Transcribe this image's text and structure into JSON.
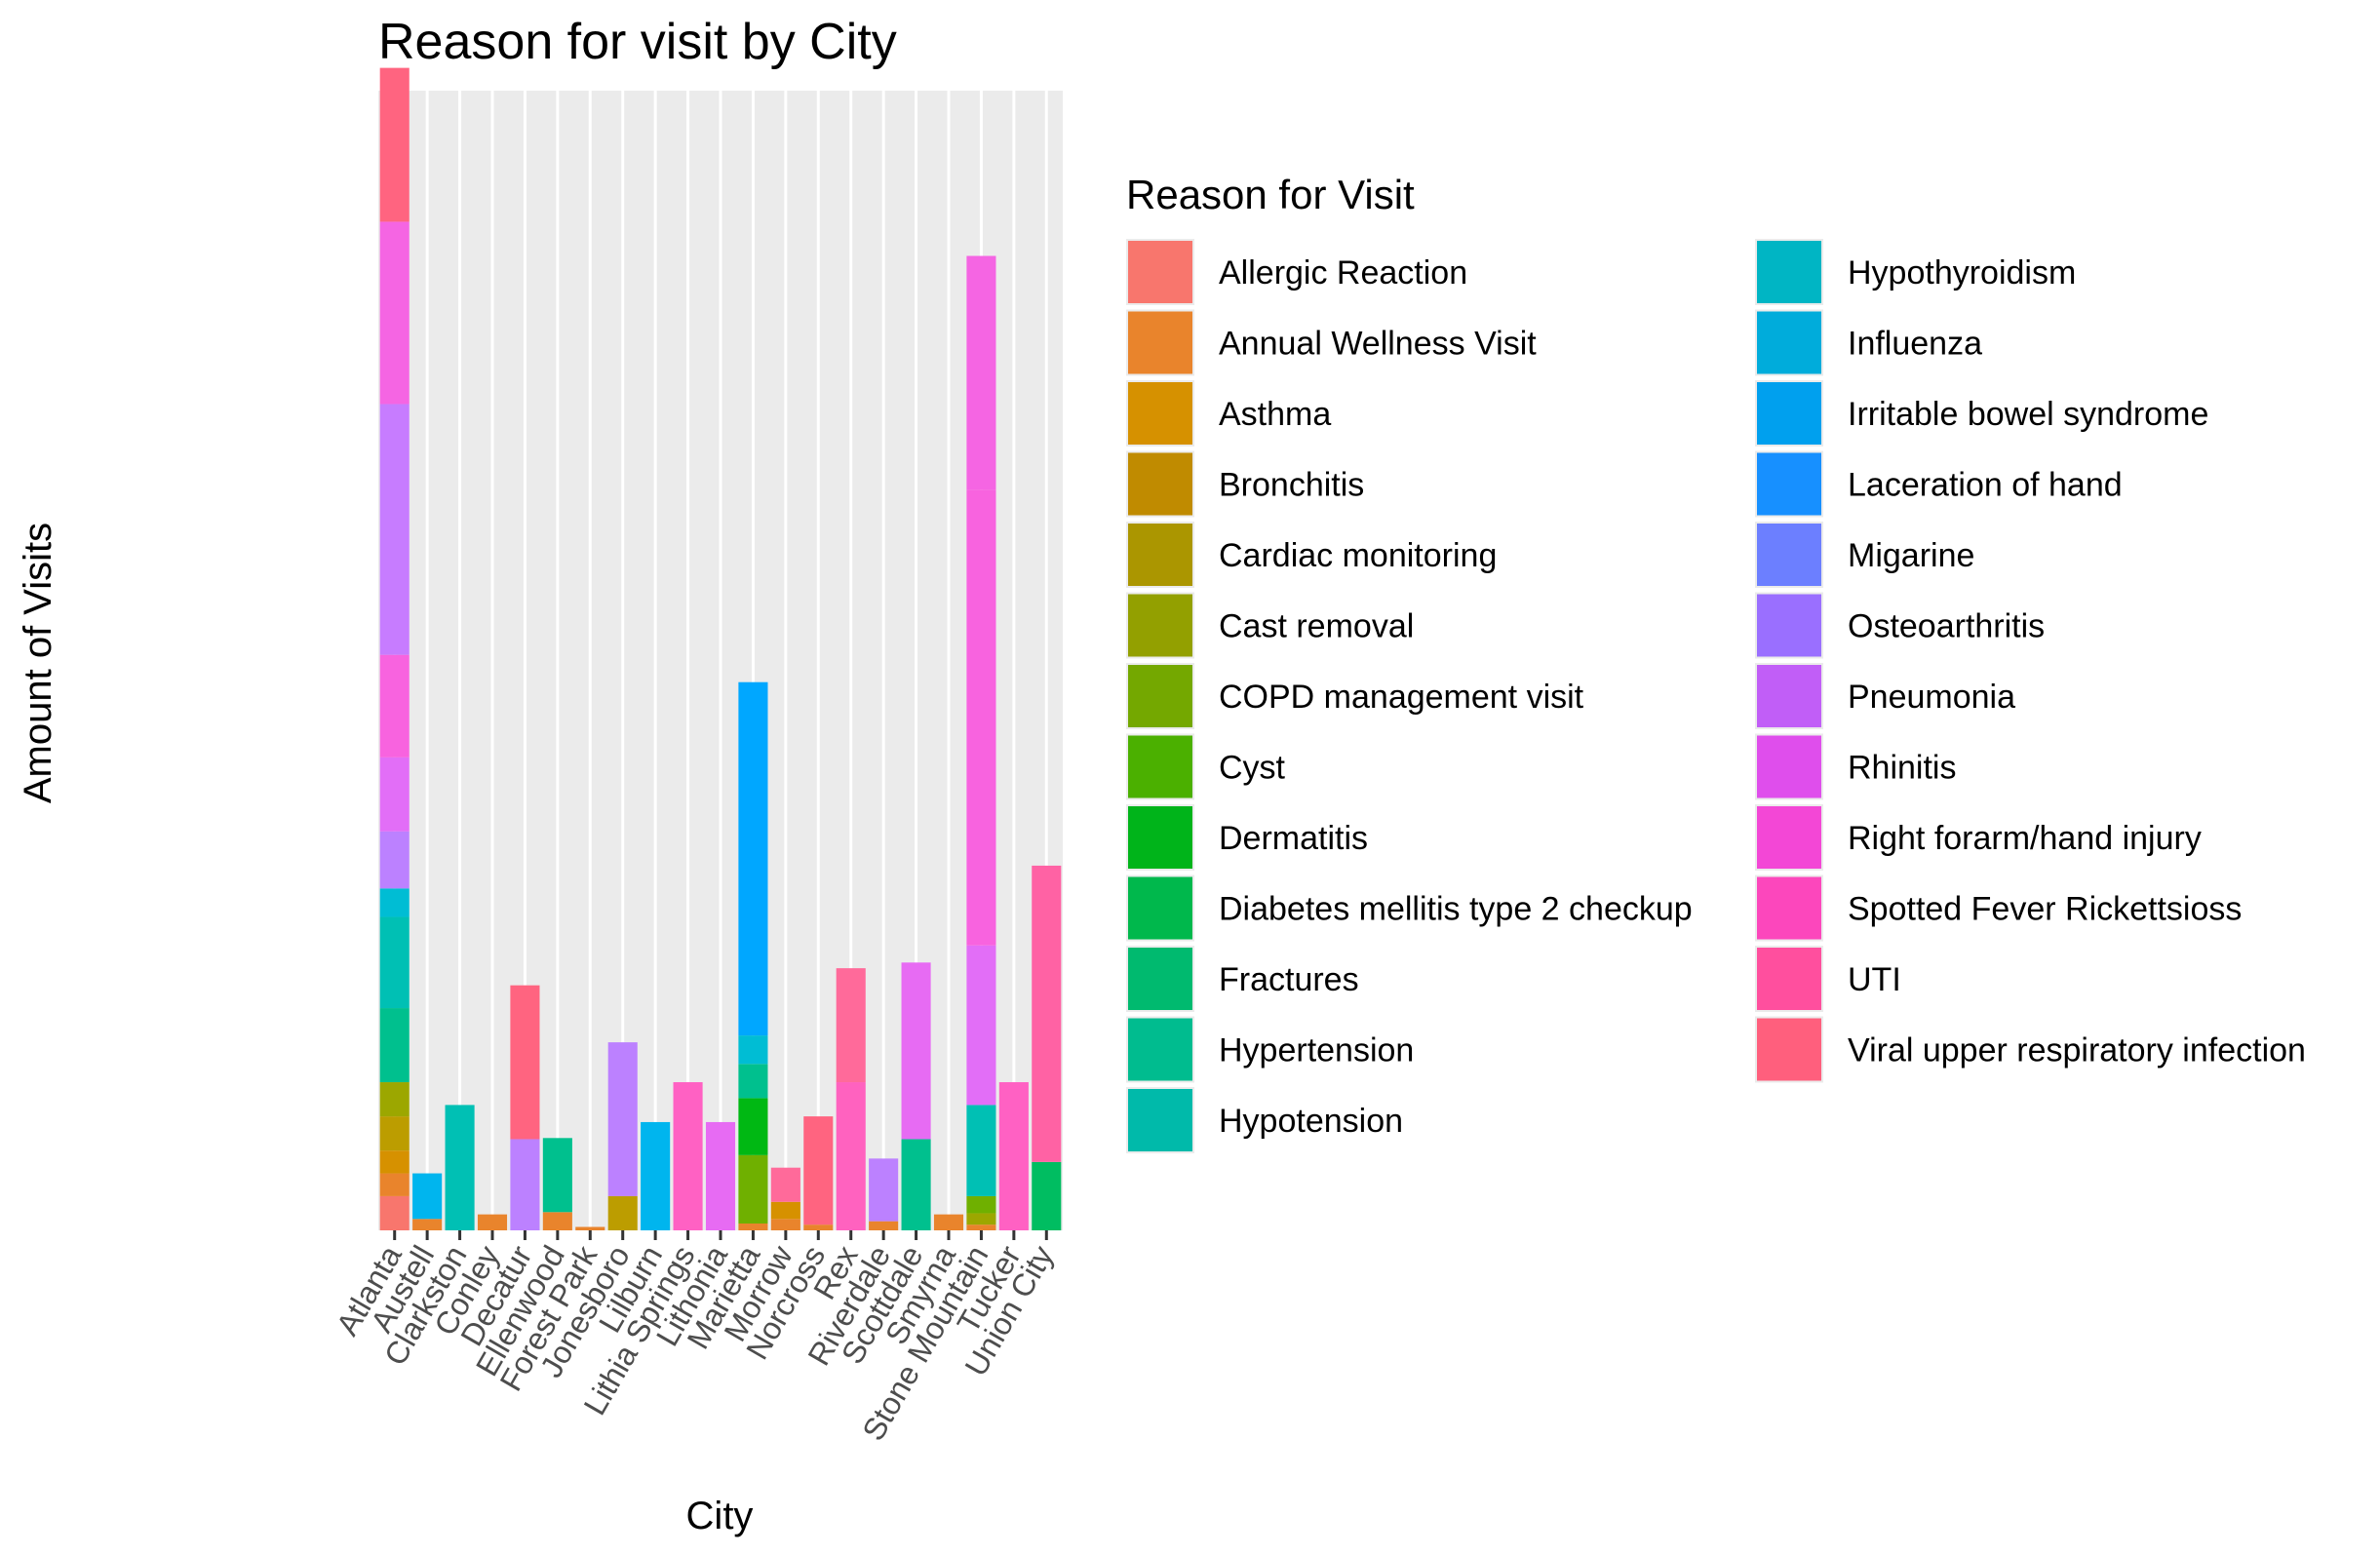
{
  "chart_data": {
    "type": "bar",
    "stacked": true,
    "title": "Reason for visit by City",
    "xlabel": "City",
    "ylabel": "Amount of Visits",
    "categories": [
      "Atlanta",
      "Austell",
      "Clarkston",
      "Conley",
      "Decatur",
      "Ellenwood",
      "Forest Park",
      "Jonesboro",
      "Lilburn",
      "Lithia Springs",
      "Lithonia",
      "Marietta",
      "Morrow",
      "Norcross",
      "Rex",
      "Riverdale",
      "Scottdale",
      "Smyrna",
      "Stone Mountain",
      "Tucker",
      "Union City"
    ],
    "ylim": [
      0,
      100
    ],
    "grid": true,
    "legend_position": "right",
    "legend_title": "Reason for Visit",
    "series": [
      {
        "name": "Allergic Reaction",
        "color": "#F8766D",
        "values": [
          3,
          0,
          0,
          0,
          0,
          0,
          0,
          0,
          0,
          0,
          0,
          0,
          0,
          0,
          0,
          0,
          0,
          0,
          0,
          0,
          0
        ]
      },
      {
        "name": "Annual Wellness Visit",
        "color": "#E9842C",
        "values": [
          2,
          1,
          0,
          1.4,
          0,
          1.6,
          0.3,
          0,
          0,
          0,
          0,
          0.6,
          1,
          0.5,
          0,
          0.8,
          0,
          1.4,
          0.5,
          0,
          0
        ]
      },
      {
        "name": "Asthma",
        "color": "#D69100",
        "values": [
          2,
          0,
          0,
          0,
          0,
          0,
          0,
          0,
          0,
          0,
          0,
          0,
          1.5,
          0,
          0,
          0,
          0,
          0,
          0,
          0,
          0
        ]
      },
      {
        "name": "Bronchitis",
        "color": "#BC9D00",
        "values": [
          3,
          0,
          0,
          0,
          0,
          0,
          0,
          3,
          0,
          0,
          0,
          0,
          0,
          0,
          0,
          0,
          0,
          0,
          0,
          0,
          0
        ]
      },
      {
        "name": "Cardiac monitoring",
        "color": "#9CA700",
        "values": [
          3,
          0,
          0,
          0,
          0,
          0,
          0,
          0,
          0,
          0,
          0,
          0,
          0,
          0,
          0,
          0,
          0,
          0,
          1,
          0,
          0
        ]
      },
      {
        "name": "Cast removal",
        "color": "#6FB000",
        "values": [
          0,
          0,
          0,
          0,
          0,
          0,
          0,
          0,
          0,
          0,
          0,
          6,
          0,
          0,
          0,
          0,
          0,
          0,
          1.5,
          0,
          0
        ]
      },
      {
        "name": "COPD management visit",
        "color": "#00B813",
        "values": [
          0,
          0,
          0,
          0,
          0,
          0,
          0,
          0,
          0,
          0,
          0,
          5,
          0,
          0,
          0,
          0,
          0,
          0,
          0,
          0,
          0
        ]
      },
      {
        "name": "Cyst",
        "color": "#00BD61",
        "values": [
          0,
          0,
          0,
          0,
          0,
          0,
          0,
          0,
          0,
          0,
          0,
          0,
          0,
          0,
          0,
          0,
          0,
          0,
          0,
          0,
          6
        ]
      },
      {
        "name": "Dermatitis",
        "color": "#00C08E",
        "values": [
          6.5,
          0,
          0,
          0,
          0,
          6.5,
          0,
          0,
          0,
          0,
          0,
          3,
          0,
          0,
          0,
          0,
          8,
          0,
          0,
          0,
          0
        ]
      },
      {
        "name": "Diabetes mellitis type 2 checkup",
        "color": "#00C0B4",
        "values": [
          8,
          0,
          11,
          0,
          0,
          0,
          0,
          0,
          0,
          0,
          0,
          0,
          0,
          0,
          0,
          0,
          0,
          0,
          8,
          0,
          0
        ]
      },
      {
        "name": "Fractures",
        "color": "#00BDD4",
        "values": [
          2.5,
          0,
          0,
          0,
          0,
          0,
          0,
          0,
          0,
          0,
          0,
          2.5,
          0,
          0,
          0,
          0,
          0,
          0,
          0,
          0,
          0
        ]
      },
      {
        "name": "Hypertension",
        "color": "#00B5EE",
        "values": [
          0,
          4,
          0,
          0,
          0,
          0,
          0,
          0,
          9.5,
          0,
          0,
          0,
          0,
          0,
          0,
          0,
          0,
          0,
          0,
          0,
          0
        ]
      },
      {
        "name": "Hypotension",
        "color": "#00A7FF",
        "values": [
          0,
          0,
          0,
          0,
          0,
          0,
          0,
          0,
          0,
          0,
          0,
          31,
          0,
          0,
          0,
          0,
          0,
          0,
          0,
          0,
          0
        ]
      },
      {
        "name": "Hypothyroidism",
        "color": "#7F96FF",
        "values": [
          0,
          0,
          0,
          0,
          0,
          0,
          0,
          0,
          0,
          0,
          0,
          0,
          0,
          0,
          0,
          0,
          0,
          0,
          0,
          0,
          0
        ]
      },
      {
        "name": "Influenza",
        "color": "#BC81FF",
        "values": [
          5,
          0,
          0,
          0,
          8,
          0,
          0,
          13.5,
          0,
          0,
          0,
          0,
          0,
          0,
          0,
          5.5,
          0,
          0,
          0,
          0,
          0
        ]
      },
      {
        "name": "Irritable bowel syndrome",
        "color": "#E26EF7",
        "values": [
          6.5,
          0,
          0,
          0,
          0,
          0,
          0,
          0,
          0,
          0,
          0,
          0,
          0,
          0,
          0,
          0,
          0,
          0,
          14,
          0,
          0
        ]
      },
      {
        "name": "Laceration of hand",
        "color": "#F863DF",
        "values": [
          9,
          0,
          0,
          0,
          0,
          0,
          0,
          0,
          0,
          0,
          0,
          0,
          0,
          0,
          0,
          0,
          0,
          0,
          40,
          0,
          0
        ]
      },
      {
        "name": "Migarine",
        "color": "#FF62BF",
        "values": [
          0,
          0,
          0,
          0,
          0,
          0,
          0,
          0,
          0,
          0,
          0,
          0,
          0,
          0,
          13,
          0,
          0,
          0,
          0,
          0,
          0
        ]
      },
      {
        "name": "Osteoarthritis",
        "color": "#FF6A9A",
        "values": [
          0,
          0,
          0,
          0,
          0,
          0,
          0,
          0,
          0,
          0,
          0,
          0,
          3,
          0,
          10,
          0,
          0,
          0,
          0,
          0,
          0
        ]
      },
      {
        "name": "Pneumonia",
        "color": "#C77CFF",
        "values": [
          22,
          0,
          0,
          0,
          0,
          0,
          0,
          0,
          0,
          0,
          0,
          0,
          0,
          0,
          0,
          0,
          0,
          0,
          0,
          0,
          0
        ]
      },
      {
        "name": "Rhinitis",
        "color": "#E76BF3",
        "values": [
          0,
          0,
          0,
          0,
          0,
          0,
          0,
          0,
          0,
          0,
          9.5,
          0,
          0,
          0,
          0,
          0,
          15.5,
          0,
          0,
          0,
          0
        ]
      },
      {
        "name": "Right forarm/hand injury",
        "color": "#F565E3",
        "values": [
          16,
          0,
          0,
          0,
          0,
          0,
          0,
          0,
          0,
          0,
          0,
          0,
          0,
          0,
          0,
          0,
          0,
          0,
          20.5,
          0,
          0
        ]
      },
      {
        "name": "Spotted Fever Rickettsioss",
        "color": "#FF61C3",
        "values": [
          0,
          0,
          0,
          0,
          0,
          0,
          0,
          0,
          0,
          13,
          0,
          0,
          0,
          0,
          0,
          0,
          0,
          0,
          0,
          13,
          0
        ]
      },
      {
        "name": "UTI",
        "color": "#FF62A4",
        "values": [
          0,
          0,
          0,
          0,
          0,
          0,
          0,
          0,
          0,
          0,
          0,
          0,
          0,
          0,
          0,
          0,
          0,
          0,
          0,
          0,
          26
        ]
      },
      {
        "name": "Viral upper respiratory infection",
        "color": "#FF6480",
        "values": [
          13.5,
          0,
          0,
          0,
          13.5,
          0,
          0,
          0,
          0,
          0,
          0,
          0,
          0,
          9.5,
          0,
          0,
          0,
          0,
          0,
          0,
          0
        ]
      }
    ],
    "legend_swatches": [
      {
        "name": "Allergic Reaction",
        "color": "#F8766D"
      },
      {
        "name": "Annual Wellness Visit",
        "color": "#E9842C"
      },
      {
        "name": "Asthma",
        "color": "#D69100"
      },
      {
        "name": "Bronchitis",
        "color": "#C08B00"
      },
      {
        "name": "Cardiac monitoring",
        "color": "#AB9600"
      },
      {
        "name": "Cast removal",
        "color": "#93A000"
      },
      {
        "name": "COPD management visit",
        "color": "#74A800"
      },
      {
        "name": "Cyst",
        "color": "#4BB000"
      },
      {
        "name": "Dermatitis",
        "color": "#00B41A"
      },
      {
        "name": "Diabetes mellitis type 2 checkup",
        "color": "#00B84C"
      },
      {
        "name": "Fractures",
        "color": "#00BA6F"
      },
      {
        "name": "Hypertension",
        "color": "#00BC8F"
      },
      {
        "name": "Hypotension",
        "color": "#00BAAA"
      },
      {
        "name": "Hypothyroidism",
        "color": "#00B5C4"
      },
      {
        "name": "Influenza",
        "color": "#00ACDB"
      },
      {
        "name": "Irritable bowel syndrome",
        "color": "#00A0EE"
      },
      {
        "name": "Laceration of hand",
        "color": "#1790FF"
      },
      {
        "name": "Migarine",
        "color": "#6C7FFF"
      },
      {
        "name": "Osteoarthritis",
        "color": "#9A6FFF"
      },
      {
        "name": "Pneumonia",
        "color": "#C15EF7"
      },
      {
        "name": "Rhinitis",
        "color": "#DF4EEC"
      },
      {
        "name": "Right forarm/hand injury",
        "color": "#F347D6"
      },
      {
        "name": "Spotted Fever Rickettsioss",
        "color": "#FC47BC"
      },
      {
        "name": "UTI",
        "color": "#FF4F9E"
      },
      {
        "name": "Viral upper respiratory infection",
        "color": "#FF5F7D"
      }
    ]
  }
}
